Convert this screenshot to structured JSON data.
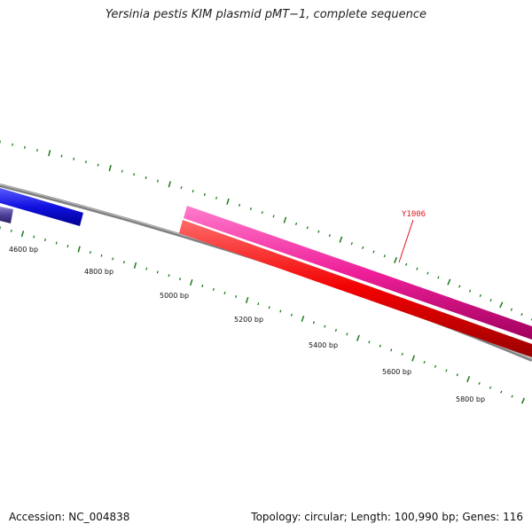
{
  "title": "Yersinia pestis KIM plasmid pMT−1, complete sequence",
  "footer": {
    "accession": "Accession: NC_004838",
    "summary": "Topology: circular; Length: 100,990 bp; Genes: 116"
  },
  "position_labels": [
    "4600 bp",
    "4800 bp",
    "5000 bp",
    "5200 bp",
    "5400 bp",
    "5600 bp",
    "5800 bp"
  ],
  "gene_label": "Y1006",
  "colors": {
    "backbone": "#808080",
    "tick": "#1a7a1a",
    "gene_blue": "#1010e0",
    "gene_purple": "#4b3f99",
    "gene_pink": "#ee1f99",
    "gene_red": "#f20000",
    "gene_label": "#e0141e"
  }
}
